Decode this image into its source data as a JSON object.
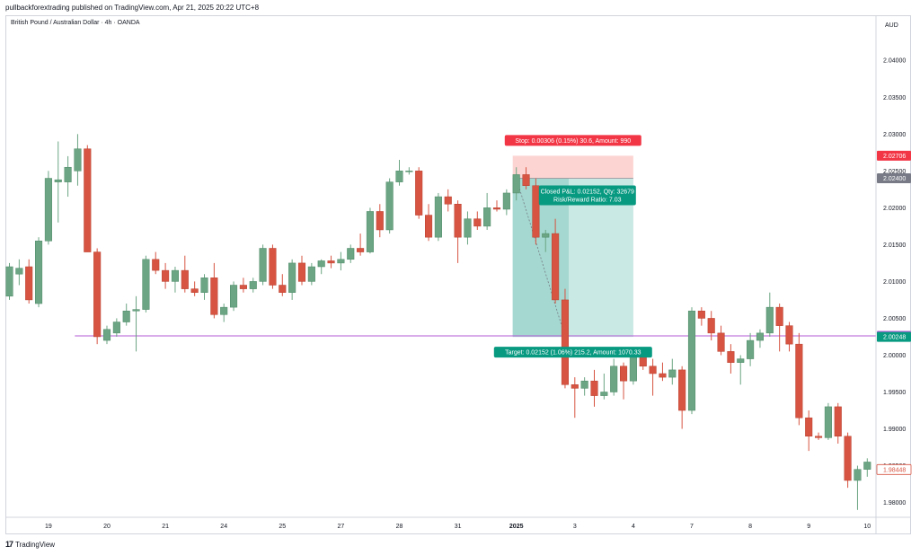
{
  "header": {
    "published_by": "pullbackforextrading published on TradingView.com, Apr 21, 2025 20:22 UTC+8"
  },
  "footer": {
    "brand": "TradingView"
  },
  "colors": {
    "bull": "#6ba583",
    "bear": "#d75442",
    "stop_zone": "#fcd5d2",
    "target_zone": "#c8e9e4",
    "target_zone_active": "#a4d8d0",
    "level_line": "#b35ad6",
    "label_red": "#f23645",
    "label_green": "#089981",
    "label_gray": "#787b86"
  },
  "chart_data": {
    "type": "candlestick",
    "title": "British Pound / Australian Dollar · 4h · OANDA",
    "currency": "AUD",
    "ylim": [
      1.978,
      2.046
    ],
    "y_ticks": [
      "2.04000",
      "2.03500",
      "2.03000",
      "2.02500",
      "2.02000",
      "2.01500",
      "2.01000",
      "2.00500",
      "2.00000",
      "1.99500",
      "1.99000",
      "1.98500",
      "1.98000"
    ],
    "x_ticks": [
      {
        "label": "19",
        "bar": 4
      },
      {
        "label": "20",
        "bar": 10
      },
      {
        "label": "21",
        "bar": 16
      },
      {
        "label": "24",
        "bar": 22
      },
      {
        "label": "25",
        "bar": 28
      },
      {
        "label": "27",
        "bar": 34
      },
      {
        "label": "28",
        "bar": 40
      },
      {
        "label": "31",
        "bar": 46
      },
      {
        "label": "2025",
        "bar": 52,
        "bold": true
      },
      {
        "label": "3",
        "bar": 58
      },
      {
        "label": "4",
        "bar": 64
      },
      {
        "label": "7",
        "bar": 70
      },
      {
        "label": "8",
        "bar": 76
      },
      {
        "label": "9",
        "bar": 82
      },
      {
        "label": "10",
        "bar": 88
      }
    ],
    "candles": [
      [
        2.008,
        2.0125,
        2.0075,
        2.012
      ],
      [
        2.011,
        2.013,
        2.0095,
        2.0118
      ],
      [
        2.012,
        2.013,
        2.007,
        2.0075
      ],
      [
        2.007,
        2.016,
        2.0065,
        2.0155
      ],
      [
        2.0155,
        2.025,
        2.015,
        2.024
      ],
      [
        2.0235,
        2.029,
        2.018,
        2.0238
      ],
      [
        2.0235,
        2.027,
        2.0215,
        2.0255
      ],
      [
        2.025,
        2.03,
        2.023,
        2.028
      ],
      [
        2.028,
        2.0285,
        2.014,
        2.014
      ],
      [
        2.014,
        2.0145,
        2.0015,
        2.0025
      ],
      [
        2.002,
        2.004,
        2.0015,
        2.0035
      ],
      [
        2.003,
        2.005,
        2.0025,
        2.0045
      ],
      [
        2.0045,
        2.007,
        2.004,
        2.006
      ],
      [
        2.006,
        2.008,
        2.0005,
        2.0062
      ],
      [
        2.0062,
        2.0135,
        2.0058,
        2.013
      ],
      [
        2.013,
        2.014,
        2.011,
        2.0115
      ],
      [
        2.0115,
        2.0125,
        2.009,
        2.01
      ],
      [
        2.01,
        2.012,
        2.0085,
        2.0115
      ],
      [
        2.0115,
        2.0135,
        2.0085,
        2.009
      ],
      [
        2.009,
        2.01,
        2.008,
        2.0085
      ],
      [
        2.0085,
        2.011,
        2.0075,
        2.0105
      ],
      [
        2.0105,
        2.0125,
        2.005,
        2.0055
      ],
      [
        2.0055,
        2.007,
        2.0045,
        2.0065
      ],
      [
        2.0065,
        2.01,
        2.006,
        2.0095
      ],
      [
        2.0095,
        2.0105,
        2.0085,
        2.009
      ],
      [
        2.009,
        2.0105,
        2.0085,
        2.01
      ],
      [
        2.01,
        2.015,
        2.0095,
        2.0145
      ],
      [
        2.0145,
        2.015,
        2.009,
        2.0095
      ],
      [
        2.0095,
        2.011,
        2.008,
        2.0085
      ],
      [
        2.0085,
        2.013,
        2.0075,
        2.0125
      ],
      [
        2.0125,
        2.0135,
        2.0095,
        2.01
      ],
      [
        2.01,
        2.0125,
        2.0095,
        2.012
      ],
      [
        2.012,
        2.013,
        2.011,
        2.0128
      ],
      [
        2.0128,
        2.0135,
        2.0118,
        2.0125
      ],
      [
        2.0125,
        2.014,
        2.0115,
        2.013
      ],
      [
        2.013,
        2.015,
        2.0125,
        2.0145
      ],
      [
        2.0145,
        2.0165,
        2.0135,
        2.014
      ],
      [
        2.014,
        2.02,
        2.0138,
        2.0195
      ],
      [
        2.0195,
        2.0205,
        2.016,
        2.017
      ],
      [
        2.017,
        2.024,
        2.0165,
        2.0235
      ],
      [
        2.0235,
        2.0265,
        2.023,
        2.025
      ],
      [
        2.025,
        2.0255,
        2.0245,
        2.025
      ],
      [
        2.025,
        2.0255,
        2.0185,
        2.019
      ],
      [
        2.019,
        2.0205,
        2.0155,
        2.016
      ],
      [
        2.016,
        2.022,
        2.0155,
        2.0215
      ],
      [
        2.0215,
        2.0225,
        2.0195,
        2.0205
      ],
      [
        2.0205,
        2.021,
        2.0125,
        2.016
      ],
      [
        2.016,
        2.0195,
        2.015,
        2.0185
      ],
      [
        2.0185,
        2.0195,
        2.017,
        2.0175
      ],
      [
        2.0175,
        2.022,
        2.017,
        2.02
      ],
      [
        2.02,
        2.021,
        2.0195,
        2.0198
      ],
      [
        2.0198,
        2.0225,
        2.019,
        2.022
      ],
      [
        2.022,
        2.0255,
        2.021,
        2.0245
      ],
      [
        2.0245,
        2.0255,
        2.0225,
        2.023
      ],
      [
        2.023,
        2.024,
        2.015,
        2.016
      ],
      [
        2.016,
        2.017,
        2.014,
        2.0165
      ],
      [
        2.0165,
        2.0185,
        2.007,
        2.0075
      ],
      [
        2.0075,
        2.009,
        1.9955,
        1.996
      ],
      [
        1.996,
        1.997,
        1.9915,
        1.9955
      ],
      [
        1.9955,
        1.997,
        1.9945,
        1.9965
      ],
      [
        1.9965,
        1.998,
        1.993,
        1.9945
      ],
      [
        1.9945,
        1.9975,
        1.994,
        1.995
      ],
      [
        1.995,
        1.9995,
        1.9945,
        1.9985
      ],
      [
        1.9985,
        1.999,
        1.994,
        1.9965
      ],
      [
        1.9965,
        2.0005,
        1.996,
        2.0
      ],
      [
        2.0,
        2.0005,
        1.998,
        1.9985
      ],
      [
        1.9985,
        1.9995,
        1.9945,
        1.9975
      ],
      [
        1.9975,
        1.999,
        1.9965,
        1.997
      ],
      [
        1.997,
        1.9995,
        1.996,
        1.998
      ],
      [
        1.998,
        1.9985,
        1.99,
        1.9925
      ],
      [
        1.9925,
        2.0065,
        1.992,
        2.006
      ],
      [
        2.006,
        2.0065,
        2.004,
        2.005
      ],
      [
        2.005,
        2.006,
        2.002,
        2.003
      ],
      [
        2.003,
        2.004,
        2.0,
        2.0005
      ],
      [
        2.0005,
        2.0015,
        1.9975,
        1.999
      ],
      [
        1.999,
        2.0,
        1.996,
        1.9995
      ],
      [
        1.9995,
        2.003,
        1.9985,
        2.002
      ],
      [
        2.002,
        2.0035,
        2.001,
        2.003
      ],
      [
        2.003,
        2.0085,
        2.0025,
        2.0065
      ],
      [
        2.0065,
        2.007,
        2.0005,
        2.004
      ],
      [
        2.004,
        2.0045,
        2.0005,
        2.0015
      ],
      [
        2.0015,
        2.003,
        1.9905,
        1.9915
      ],
      [
        1.9915,
        1.9925,
        1.987,
        1.989
      ],
      [
        1.989,
        1.9895,
        1.9885,
        1.9888
      ],
      [
        1.9888,
        1.9935,
        1.9885,
        1.993
      ],
      [
        1.993,
        1.9935,
        1.988,
        1.989
      ],
      [
        1.989,
        1.9895,
        1.982,
        1.983
      ],
      [
        1.983,
        1.985,
        1.979,
        1.9845
      ],
      [
        1.9845,
        1.986,
        1.9835,
        1.9855
      ],
      [
        1.9855,
        1.987,
        1.9845,
        1.9865
      ],
      [
        1.9865,
        1.9875,
        1.984,
        1.9845
      ]
    ],
    "position": {
      "entry": 2.024,
      "stop": 2.02706,
      "target": 2.00248,
      "start_bar": 52,
      "end_bar": 64,
      "active_end_bar": 57,
      "stop_label": "Stop: 0.00306 (0.15%) 30.6, Amount: 990",
      "target_label": "Target: 0.02152 (1.06%) 215.2, Amount: 1070.33",
      "pnl_label_line1": "Closed P&L: 0.02152, Qty: 32679",
      "pnl_label_line2": "Risk/Reward Ratio: 7.03"
    },
    "level_line": {
      "price": 2.00262,
      "start_bar": 8
    },
    "price_tags": [
      {
        "value": "2.02706",
        "price": 2.02706,
        "color": "#f23645"
      },
      {
        "value": "2.02400",
        "price": 2.024,
        "color": "#787b86"
      },
      {
        "value": "2.00262",
        "price": 2.00262,
        "color": "#b35ad6"
      },
      {
        "value": "2.00248",
        "price": 2.00248,
        "color": "#089981"
      },
      {
        "value": "1.98448",
        "price": 1.98448,
        "color": "#ffffff",
        "text_color": "#d75442",
        "border": "#d75442"
      }
    ]
  }
}
